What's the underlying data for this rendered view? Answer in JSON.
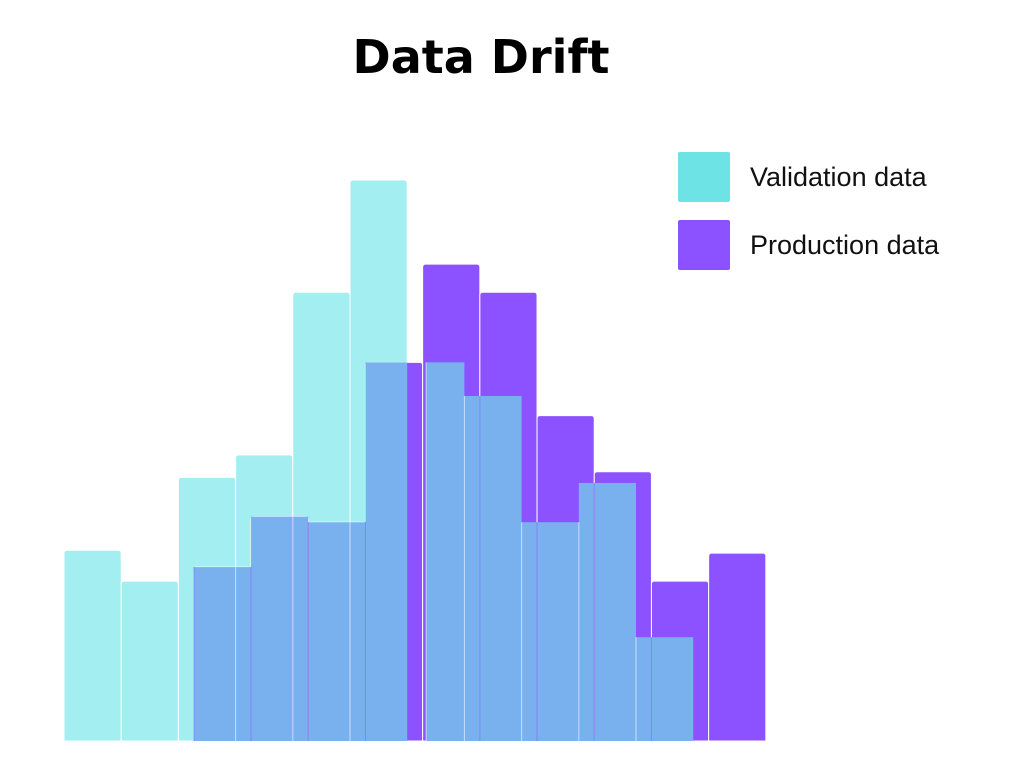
{
  "title": "Data Drift",
  "legend": [
    {
      "label": "Validation data",
      "color": "#6de3e6"
    },
    {
      "label": "Production data",
      "color": "#8c52ff"
    }
  ],
  "chart_data": {
    "type": "bar",
    "title": "Data Drift",
    "xlabel": "",
    "ylabel": "",
    "ylim": [
      0,
      100
    ],
    "grid": false,
    "legend_position": "top-right",
    "overlay_color": "#78b1ee",
    "series": [
      {
        "name": "Validation data",
        "color": "#a3eef0",
        "bins": [
          {
            "start": 0,
            "end": 1,
            "value": 34
          },
          {
            "start": 1,
            "end": 2,
            "value": 28.5
          },
          {
            "start": 2,
            "end": 3,
            "value": 47
          },
          {
            "start": 3,
            "end": 4,
            "value": 51
          },
          {
            "start": 4,
            "end": 5,
            "value": 80
          },
          {
            "start": 5,
            "end": 6,
            "value": 100
          },
          {
            "start": 6.33,
            "end": 7,
            "value": 67.5
          },
          {
            "start": 7,
            "end": 8,
            "value": 61.5
          },
          {
            "start": 8,
            "end": 9,
            "value": 39
          },
          {
            "start": 9,
            "end": 10,
            "value": 46
          },
          {
            "start": 10,
            "end": 11,
            "value": 18.5
          }
        ]
      },
      {
        "name": "Production data",
        "color": "#8c52ff",
        "bins": [
          {
            "start": 2.27,
            "end": 3.27,
            "value": 31
          },
          {
            "start": 3.27,
            "end": 4.27,
            "value": 40
          },
          {
            "start": 4.27,
            "end": 5.27,
            "value": 39
          },
          {
            "start": 5.27,
            "end": 6.27,
            "value": 67.5
          },
          {
            "start": 6.27,
            "end": 7.27,
            "value": 85
          },
          {
            "start": 7.27,
            "end": 8.27,
            "value": 80
          },
          {
            "start": 8.27,
            "end": 9.27,
            "value": 58
          },
          {
            "start": 9.27,
            "end": 10.27,
            "value": 48
          },
          {
            "start": 10.27,
            "end": 11.27,
            "value": 28.5
          },
          {
            "start": 11.27,
            "end": 12.27,
            "value": 33.5
          }
        ]
      }
    ]
  }
}
